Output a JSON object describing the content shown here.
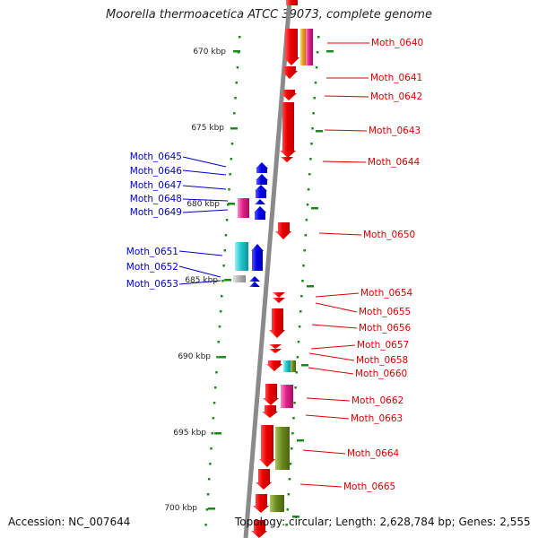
{
  "title": "Moorella thermoacetica ATCC 39073, complete genome",
  "footer": {
    "accession": "Accession: NC_007644",
    "summary": "Topology: circular; Length: 2,628,784 bp; Genes: 2,555"
  },
  "colors": {
    "backbone": "#8a8a8a",
    "tick": "#1a8a1a",
    "forward_label": "#0000cc",
    "reverse_label": "#dd0000",
    "red": "#ee0000",
    "blue": "#0000ee",
    "magenta": "#e0208a",
    "cyan": "#20c8cc",
    "olive": "#6a8a20",
    "orange": "#f0a020",
    "gray": "#b4b4b4"
  },
  "scale_labels": [
    {
      "pos_kbp": 670,
      "text": "670 kbp"
    },
    {
      "pos_kbp": 675,
      "text": "675 kbp"
    },
    {
      "pos_kbp": 680,
      "text": "680 kbp"
    },
    {
      "pos_kbp": 685,
      "text": "685 kbp"
    },
    {
      "pos_kbp": 690,
      "text": "690 kbp"
    },
    {
      "pos_kbp": 695,
      "text": "695 kbp"
    },
    {
      "pos_kbp": 700,
      "text": "700 kbp"
    }
  ],
  "gene_labels_left": [
    "Moth_0645",
    "Moth_0646",
    "Moth_0647",
    "Moth_0648",
    "Moth_0649",
    "Moth_0651",
    "Moth_0652",
    "Moth_0653"
  ],
  "gene_labels_right": [
    "Moth_0640",
    "Moth_0641",
    "Moth_0642",
    "Moth_0643",
    "Moth_0644",
    "Moth_0650",
    "Moth_0654",
    "Moth_0655",
    "Moth_0656",
    "Moth_0657",
    "Moth_0658",
    "Moth_0660",
    "Moth_0662",
    "Moth_0663",
    "Moth_0664",
    "Moth_0665"
  ]
}
